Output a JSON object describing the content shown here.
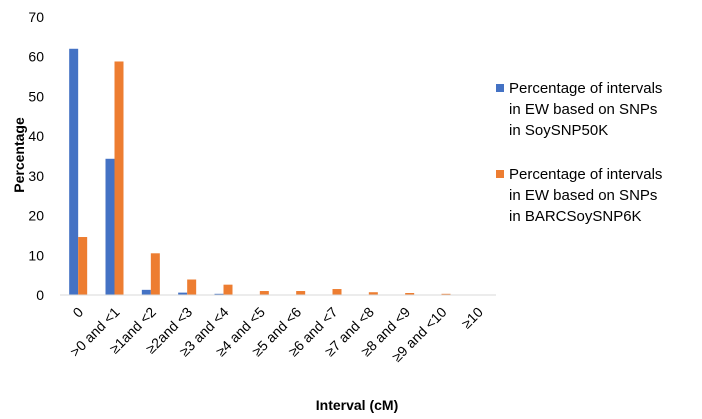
{
  "chart_data": {
    "type": "bar",
    "title": "",
    "xlabel": "Interval (cM)",
    "ylabel": "Percentage",
    "ylim": [
      0,
      70
    ],
    "yticks": [
      0,
      10,
      20,
      30,
      40,
      50,
      60,
      70
    ],
    "grid": false,
    "legend_position": "right",
    "categories": [
      "0",
      ">0 and <1",
      "≥1and <2",
      "≥2and <3",
      "≥3 and <4",
      "≥4 and <5",
      "≥5 and <6",
      "≥6 and <7",
      "≥7 and <8",
      "≥8 and <9",
      "≥9 and <10",
      "≥10"
    ],
    "series": [
      {
        "name": "Percentage of intervals in EW based on SNPs in SoySNP50K",
        "name_lines": [
          "Percentage of intervals",
          "in EW based on SNPs",
          "in SoySNP50K"
        ],
        "color": "#4472C4",
        "values": [
          62.0,
          34.3,
          1.3,
          0.6,
          0.3,
          0.1,
          0.1,
          0.05,
          0.05,
          0.0,
          0.0,
          0.0
        ]
      },
      {
        "name": "Percentage of intervals in EW based on SNPs in BARCSoySNP6K",
        "name_lines": [
          "Percentage of intervals",
          "in EW based on SNPs",
          "in BARCSoySNP6K"
        ],
        "color": "#ED7D31",
        "values": [
          14.6,
          58.8,
          10.5,
          3.9,
          2.6,
          1.0,
          1.0,
          1.5,
          0.7,
          0.5,
          0.3,
          0.1
        ]
      }
    ]
  }
}
